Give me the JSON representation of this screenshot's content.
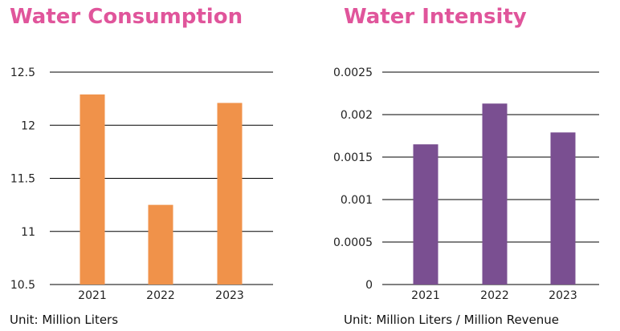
{
  "chart_data": [
    {
      "type": "bar",
      "title": "Water Consumption",
      "note": "Unit: Million Liters",
      "categories": [
        "2021",
        "2022",
        "2023"
      ],
      "values": [
        12.29,
        11.25,
        12.21
      ],
      "ylim": [
        10.5,
        12.5
      ],
      "yticks": [
        10.5,
        11,
        11.5,
        12,
        12.5
      ],
      "ytick_labels": [
        "10.5",
        "11",
        "11.5",
        "12",
        "12.5"
      ],
      "color": "#f0924a",
      "grid": true
    },
    {
      "type": "bar",
      "title": "Water Intensity",
      "note": "Unit: Million Liters / Million Revenue",
      "categories": [
        "2021",
        "2022",
        "2023"
      ],
      "values": [
        0.00165,
        0.00213,
        0.00179
      ],
      "ylim": [
        0,
        0.0025
      ],
      "yticks": [
        0,
        0.0005,
        0.001,
        0.0015,
        0.002,
        0.0025
      ],
      "ytick_labels": [
        "0",
        "0.0005",
        "0.001",
        "0.0015",
        "0.002",
        "0.0025"
      ],
      "color": "#7a4f91",
      "grid": true
    }
  ]
}
